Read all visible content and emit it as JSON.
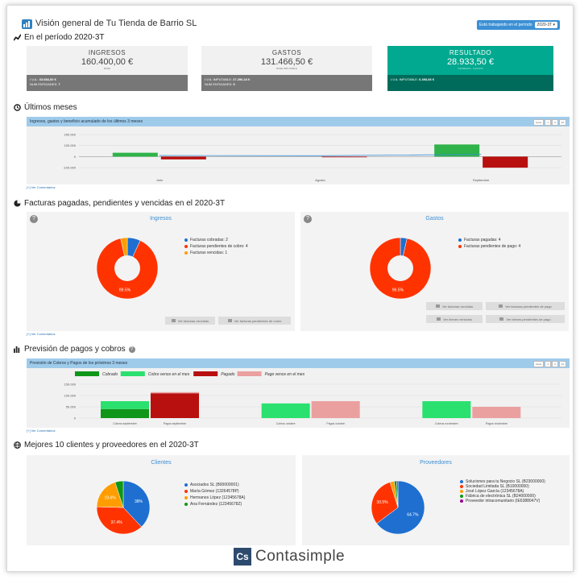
{
  "header": {
    "title": "Visión general de Tu Tienda de Barrio SL",
    "period_label": "Está trabajando en el período",
    "period_value": "2020-3T"
  },
  "section_period": {
    "title": "En el período 2020-3T"
  },
  "kpis": [
    {
      "label": "INGRESOS",
      "value": "160.400,00 €",
      "sub": "BASE",
      "line1_label": "I.V.A.:",
      "line1_value": "33.684,00 €",
      "line2_label": "NUM ENTIDADES:",
      "line2_value": "7"
    },
    {
      "label": "GASTOS",
      "value": "131.466,50 €",
      "sub": "BASE IMPUTABLE",
      "line1_label": "I.V.A. IMPUTABLE:",
      "line1_value": "27.290,34 €",
      "line2_label": "NUM ENTIDADES:",
      "line2_value": "9"
    },
    {
      "label": "RESULTADO",
      "value": "28.933,50 €",
      "sub": "INGRESOS - GASTOS",
      "line1_label": "I.V.A. IMPUTABLE:",
      "line1_value": "6.393,66 €",
      "line2_label": "",
      "line2_value": ""
    }
  ],
  "section_months": {
    "title": "Últimos meses",
    "panel_title": "Ingresos, gastos y beneficio acumulado de los últimos 3 meses",
    "comments_link": "[+] Ver Comentarios"
  },
  "zoom_buttons": [
    "zoom",
    "1",
    "4",
    "12"
  ],
  "colors": {
    "income": "#2fb34a",
    "expense": "#b80f0f",
    "blue": "#3b8fd4",
    "teal": "#00a98f",
    "teal_dark": "#006b5a",
    "red": "#ff3300",
    "orange": "#ff9d00",
    "green": "#109618",
    "purple": "#990099"
  },
  "chart_data": [
    {
      "type": "bar",
      "title": "Ingresos, gastos y beneficio acumulado de los últimos 3 meses",
      "categories": [
        "Julio",
        "Agosto",
        "Septiembre"
      ],
      "y_ticks": [
        "200.000",
        "100.000",
        "0",
        "-100.000"
      ],
      "ylim": [
        -150000,
        200000
      ],
      "series": [
        {
          "values": [
            35000,
            0,
            110000
          ],
          "color": "#2fb34a"
        },
        {
          "values": [
            -25000,
            -5000,
            -100000
          ],
          "color": "#b80f0f"
        }
      ],
      "line": {
        "values": [
          10000,
          8000,
          20000
        ]
      }
    },
    {
      "type": "bar",
      "title": "Previsión de Cobros y Pagos de los próximos 3 meses",
      "categories": [
        "Cobros septiembre",
        "Pagos septiembre",
        "Cobros octubre",
        "Pagos octubre",
        "Cobros noviembre",
        "Pagos noviembre"
      ],
      "y_ticks": [
        "150.000",
        "100.000",
        "50.000",
        "0"
      ],
      "ylim": [
        0,
        150000
      ],
      "series": [
        {
          "name": "Cobrado",
          "values": [
            40000,
            0,
            0,
            0,
            0,
            0
          ],
          "color": "#109618"
        },
        {
          "name": "Cobro vence en el mes",
          "values": [
            35000,
            0,
            65000,
            0,
            75000,
            0
          ],
          "color": "#2ae06e"
        },
        {
          "name": "Pagado",
          "values": [
            0,
            110000,
            0,
            0,
            0,
            0
          ],
          "color": "#b80f0f"
        },
        {
          "name": "Pago vence en el mes",
          "values": [
            0,
            5000,
            0,
            75000,
            0,
            50000
          ],
          "color": "#eba0a0"
        }
      ]
    },
    {
      "type": "pie",
      "title": "Ingresos",
      "labels": [
        "Facturas cobradas: 2",
        "Facturas pendientes de cobro: 4",
        "Facturas vencidas: 1"
      ],
      "values": [
        7,
        89.5,
        3.5
      ],
      "colors": [
        "#1e6fd0",
        "#ff3300",
        "#ff9d00"
      ],
      "data_labels": [
        "",
        "89.5%",
        ""
      ]
    },
    {
      "type": "pie",
      "title": "Gastos",
      "labels": [
        "Facturas pagadas: 4",
        "Facturas pendientes de pago: 4"
      ],
      "values": [
        3.5,
        96.5
      ],
      "colors": [
        "#1e6fd0",
        "#ff3300"
      ],
      "data_labels": [
        "",
        "96.5%"
      ]
    },
    {
      "type": "pie",
      "title": "Clientes",
      "labels": [
        "Asociados SL (B00000001)",
        "María Gómez (13264578P)",
        "Hermanos López (12345678A)",
        "Ana Fernández (12345678Z)"
      ],
      "values": [
        38,
        37.4,
        19.6,
        5
      ],
      "colors": [
        "#1e6fd0",
        "#ff3300",
        "#ff9d00",
        "#109618"
      ],
      "data_labels": [
        "38%",
        "37.4%",
        "19.6%",
        ""
      ]
    },
    {
      "type": "pie",
      "title": "Proveedores",
      "labels": [
        "Soluciones para tu Negocio SL (B23000000)",
        "Sociedad Limitada SL (B10000000)",
        "José López García (12345678A)",
        "Fábrica de electrónica SL (B24000000)",
        "Proveedor intracomunitario (IE6388047V)"
      ],
      "values": [
        64.7,
        30.5,
        2.5,
        1.5,
        0.8
      ],
      "colors": [
        "#1e6fd0",
        "#ff3300",
        "#ff9d00",
        "#109618",
        "#990099"
      ],
      "data_labels": [
        "64.7%",
        "30.5%",
        "",
        "",
        ""
      ]
    }
  ],
  "section_invoices": {
    "title": "Facturas pagadas, pendientes y vencidas en el 2020-3T",
    "comments_link": "[+] Ver Comentarios"
  },
  "invoice_buttons": {
    "ingresos": [
      "Ver facturas vencidas",
      "Ver facturas pendientes de cobro"
    ],
    "gastos": [
      "Ver facturas vencidas",
      "Ver facturas pendientes de pago",
      "Ver bienes vencidos",
      "Ver bienes pendientes de pago"
    ]
  },
  "section_forecast": {
    "title": "Previsión de pagos y cobros",
    "panel_title": "Previsión de Cobros y Pagos de los próximos 3 meses",
    "comments_link": "[+] Ver Comentarios"
  },
  "section_top": {
    "title": "Mejores 10 clientes y proveedores en el 2020-3T"
  },
  "logo": {
    "mark": "Cs",
    "name": "Contasimple"
  }
}
